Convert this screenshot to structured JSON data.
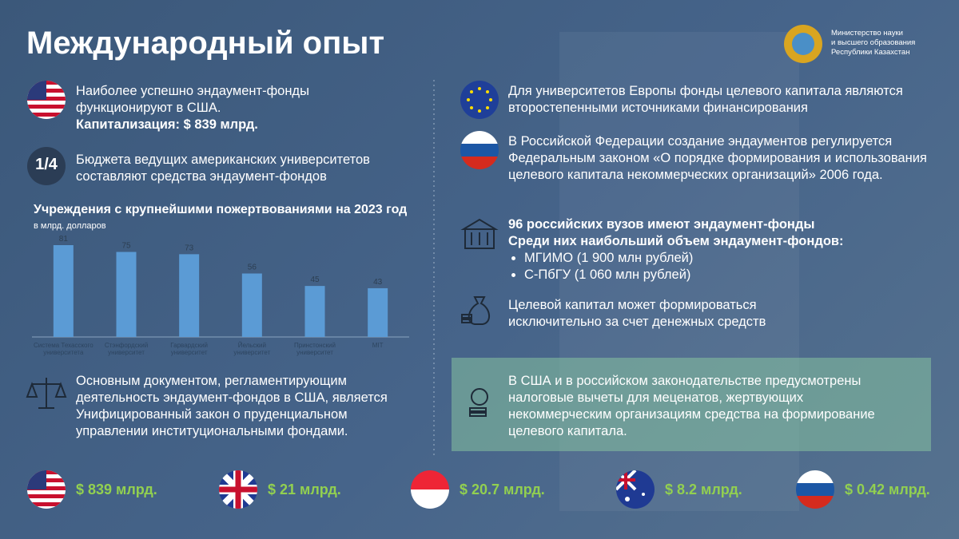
{
  "header": {
    "title": "Международный опыт",
    "ministry": [
      "Министерство науки",
      "и высшего образования",
      "Республики Казахстан"
    ]
  },
  "left": {
    "usa_text": "Наиболее успешно эндаумент-фонды функционируют в США.",
    "usa_cap": "Капитализация: $ 839 млрд.",
    "fraction": "1/4",
    "fraction_text": "Бюджета ведущих американских университетов составляют средства эндаумент-фондов",
    "law_text": "Основным документом, регламентирующим деятельность эндаумент-фондов в США, является Унифицированный закон о пруденциальном управлении институциональными фондами."
  },
  "chart_data": {
    "type": "bar",
    "title": "Учреждения с крупнейшими пожертвованиями на 2023 год",
    "subtitle": "в млрд. долларов",
    "categories": [
      "Система Техасского университета",
      "Стэнфордский университет",
      "Гарвардский университет",
      "Йельский университет",
      "Принстонский университет",
      "MIT"
    ],
    "values": [
      81,
      75,
      73,
      56,
      45,
      43
    ],
    "color": "#5b9bd5"
  },
  "right": {
    "eu_text": "Для университетов Европы фонды целевого капитала являются второстепенными источниками финансирования",
    "ru_text": "В Российской Федерации создание эндаументов регулируется Федеральным законом «О порядке формирования и использования целевого капитала некоммерческих организаций» 2006 года.",
    "vuz_title": "96 российских вузов имеют эндаумент-фонды",
    "vuz_subtitle": "Среди них наибольший объем эндаумент-фондов:",
    "vuz_list": [
      "МГИМО (1 900 млн рублей)",
      "С-ПбГУ (1 060 млн рублей)"
    ],
    "money_text": "Целевой капитал может формироваться исключительно за счет денежных средств",
    "tax_text": "В США и в российском законодательстве предусмотрены налоговые вычеты для меценатов, жертвующих некоммерческим организациям средства на формирование целевого капитала."
  },
  "bottom": [
    "$ 839 млрд.",
    "$ 21 млрд.",
    "$ 20.7 млрд.",
    "$ 8.2 млрд.",
    "$ 0.42 млрд."
  ]
}
